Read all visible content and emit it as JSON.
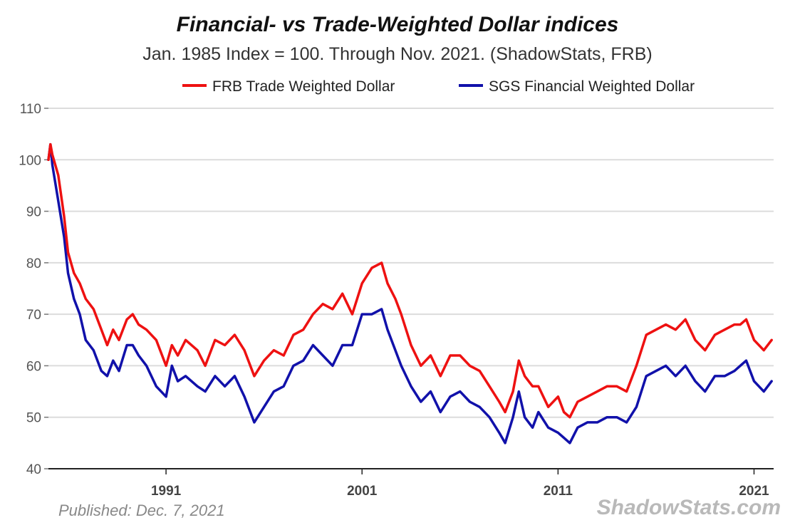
{
  "page": {
    "published": "Published: Dec. 7, 2021",
    "source_mark": "ShadowStats.com"
  },
  "chart_data": {
    "type": "line",
    "title": "Financial- vs Trade-Weighted Dollar indices",
    "subtitle": "Jan. 1985 Index = 100.  Through Nov. 2021.  (ShadowStats, FRB)",
    "xlabel": "",
    "ylabel": "",
    "ylim": [
      40,
      110
    ],
    "yticks": [
      40,
      50,
      60,
      70,
      80,
      90,
      100,
      110
    ],
    "xlim": [
      1985.0,
      2022.0
    ],
    "xticks": [
      1991,
      2001,
      2011,
      2021
    ],
    "grid": true,
    "legend_position": "top-center",
    "series": [
      {
        "name": "FRB Trade Weighted Dollar",
        "color": "#ee1111",
        "x": [
          1985.0,
          1985.1,
          1985.2,
          1985.5,
          1985.8,
          1986.0,
          1986.3,
          1986.6,
          1986.9,
          1987.3,
          1987.7,
          1988.0,
          1988.3,
          1988.6,
          1989.0,
          1989.3,
          1989.6,
          1990.0,
          1990.5,
          1991.0,
          1991.3,
          1991.6,
          1992.0,
          1992.6,
          1993.0,
          1993.5,
          1994.0,
          1994.5,
          1995.0,
          1995.5,
          1996.0,
          1996.5,
          1997.0,
          1997.5,
          1998.0,
          1998.5,
          1999.0,
          1999.5,
          2000.0,
          2000.5,
          2001.0,
          2001.5,
          2002.0,
          2002.3,
          2002.7,
          2003.0,
          2003.5,
          2004.0,
          2004.5,
          2005.0,
          2005.5,
          2006.0,
          2006.5,
          2007.0,
          2007.5,
          2008.0,
          2008.3,
          2008.7,
          2009.0,
          2009.3,
          2009.7,
          2010.0,
          2010.5,
          2011.0,
          2011.3,
          2011.6,
          2012.0,
          2012.5,
          2013.0,
          2013.5,
          2014.0,
          2014.5,
          2015.0,
          2015.5,
          2016.0,
          2016.5,
          2017.0,
          2017.5,
          2018.0,
          2018.5,
          2019.0,
          2019.5,
          2020.0,
          2020.3,
          2020.6,
          2021.0,
          2021.5,
          2021.9
        ],
        "values": [
          100,
          103,
          101,
          97,
          89,
          82,
          78,
          76,
          73,
          71,
          67,
          64,
          67,
          65,
          69,
          70,
          68,
          67,
          65,
          60,
          64,
          62,
          65,
          63,
          60,
          65,
          64,
          66,
          63,
          58,
          61,
          63,
          62,
          66,
          67,
          70,
          72,
          71,
          74,
          70,
          76,
          79,
          80,
          76,
          73,
          70,
          64,
          60,
          62,
          58,
          62,
          62,
          60,
          59,
          56,
          53,
          51,
          55,
          61,
          58,
          56,
          56,
          52,
          54,
          51,
          50,
          53,
          54,
          55,
          56,
          56,
          55,
          60,
          66,
          67,
          68,
          67,
          69,
          65,
          63,
          66,
          67,
          68,
          68,
          69,
          65,
          63,
          65
        ]
      },
      {
        "name": "SGS Financial Weighted Dollar",
        "color": "#1111aa",
        "x": [
          1985.0,
          1985.1,
          1985.2,
          1985.5,
          1985.8,
          1986.0,
          1986.3,
          1986.6,
          1986.9,
          1987.3,
          1987.7,
          1988.0,
          1988.3,
          1988.6,
          1989.0,
          1989.3,
          1989.6,
          1990.0,
          1990.5,
          1991.0,
          1991.3,
          1991.6,
          1992.0,
          1992.6,
          1993.0,
          1993.5,
          1994.0,
          1994.5,
          1995.0,
          1995.5,
          1996.0,
          1996.5,
          1997.0,
          1997.5,
          1998.0,
          1998.5,
          1999.0,
          1999.5,
          2000.0,
          2000.5,
          2001.0,
          2001.5,
          2002.0,
          2002.3,
          2002.7,
          2003.0,
          2003.5,
          2004.0,
          2004.5,
          2005.0,
          2005.5,
          2006.0,
          2006.5,
          2007.0,
          2007.5,
          2008.0,
          2008.3,
          2008.7,
          2009.0,
          2009.3,
          2009.7,
          2010.0,
          2010.5,
          2011.0,
          2011.3,
          2011.6,
          2012.0,
          2012.5,
          2013.0,
          2013.5,
          2014.0,
          2014.5,
          2015.0,
          2015.5,
          2016.0,
          2016.5,
          2017.0,
          2017.5,
          2018.0,
          2018.5,
          2019.0,
          2019.5,
          2020.0,
          2020.3,
          2020.6,
          2021.0,
          2021.5,
          2021.9
        ],
        "values": [
          100,
          103,
          99,
          92,
          85,
          78,
          73,
          70,
          65,
          63,
          59,
          58,
          61,
          59,
          64,
          64,
          62,
          60,
          56,
          54,
          60,
          57,
          58,
          56,
          55,
          58,
          56,
          58,
          54,
          49,
          52,
          55,
          56,
          60,
          61,
          64,
          62,
          60,
          64,
          64,
          70,
          70,
          71,
          67,
          63,
          60,
          56,
          53,
          55,
          51,
          54,
          55,
          53,
          52,
          50,
          47,
          45,
          50,
          55,
          50,
          48,
          51,
          48,
          47,
          46,
          45,
          48,
          49,
          49,
          50,
          50,
          49,
          52,
          58,
          59,
          60,
          58,
          60,
          57,
          55,
          58,
          58,
          59,
          60,
          61,
          57,
          55,
          57
        ]
      }
    ]
  }
}
